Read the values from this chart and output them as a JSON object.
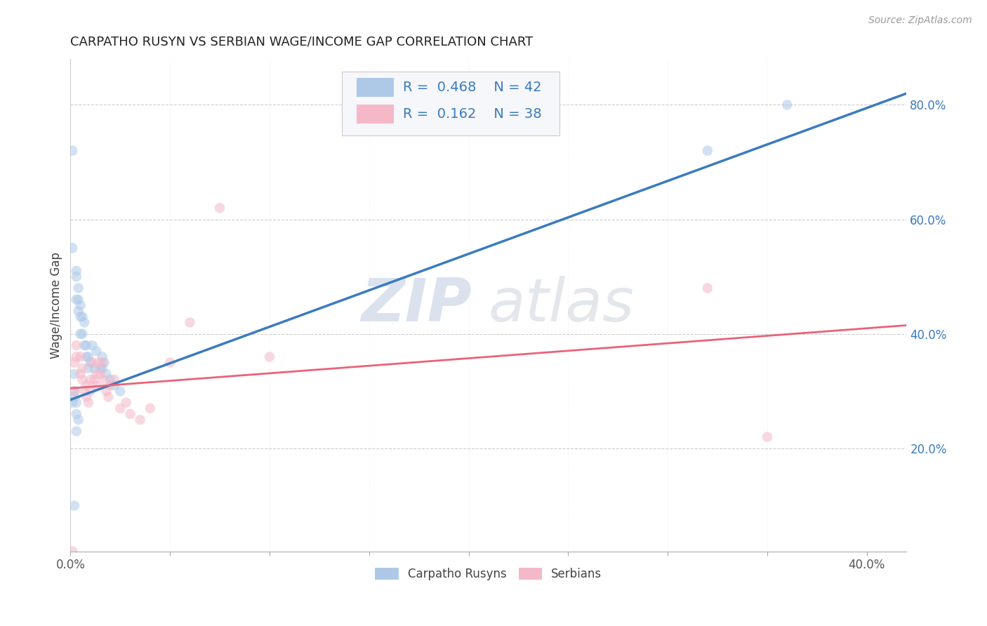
{
  "title": "CARPATHO RUSYN VS SERBIAN WAGE/INCOME GAP CORRELATION CHART",
  "source": "Source: ZipAtlas.com",
  "ylabel": "Wage/Income Gap",
  "x_tick_labels_show": [
    "0.0%",
    "",
    "",
    "",
    "",
    "",
    "",
    "",
    "40.0%"
  ],
  "y_label_right_ticks": [
    "20.0%",
    "40.0%",
    "60.0%",
    "80.0%"
  ],
  "xlim": [
    0.0,
    0.42
  ],
  "ylim": [
    0.02,
    0.88
  ],
  "blue_R": 0.468,
  "blue_N": 42,
  "pink_R": 0.162,
  "pink_N": 38,
  "blue_color": "#aec9e8",
  "pink_color": "#f4b8c8",
  "blue_line_color": "#3a7bbf",
  "pink_line_color": "#e8637a",
  "watermark_color": "#ccd6e8",
  "background_color": "#ffffff",
  "grid_color": "#cccccc",
  "blue_scatter_x": [
    0.001,
    0.002,
    0.001,
    0.002,
    0.002,
    0.003,
    0.003,
    0.003,
    0.004,
    0.004,
    0.004,
    0.005,
    0.005,
    0.005,
    0.006,
    0.006,
    0.007,
    0.007,
    0.008,
    0.008,
    0.009,
    0.009,
    0.01,
    0.011,
    0.012,
    0.013,
    0.015,
    0.016,
    0.016,
    0.017,
    0.018,
    0.02,
    0.022,
    0.025,
    0.001,
    0.002,
    0.003,
    0.003,
    0.004,
    0.003,
    0.32,
    0.36
  ],
  "blue_scatter_y": [
    0.72,
    0.1,
    0.55,
    0.3,
    0.33,
    0.46,
    0.5,
    0.51,
    0.44,
    0.46,
    0.48,
    0.4,
    0.43,
    0.45,
    0.4,
    0.43,
    0.38,
    0.42,
    0.36,
    0.38,
    0.34,
    0.36,
    0.35,
    0.38,
    0.34,
    0.37,
    0.34,
    0.36,
    0.34,
    0.35,
    0.33,
    0.32,
    0.31,
    0.3,
    0.28,
    0.29,
    0.28,
    0.26,
    0.25,
    0.23,
    0.72,
    0.8
  ],
  "pink_scatter_x": [
    0.001,
    0.002,
    0.003,
    0.003,
    0.005,
    0.005,
    0.006,
    0.006,
    0.007,
    0.008,
    0.008,
    0.009,
    0.01,
    0.01,
    0.011,
    0.012,
    0.013,
    0.013,
    0.014,
    0.015,
    0.016,
    0.017,
    0.018,
    0.019,
    0.02,
    0.022,
    0.025,
    0.028,
    0.03,
    0.035,
    0.04,
    0.05,
    0.06,
    0.075,
    0.32,
    0.35,
    0.002,
    0.1
  ],
  "pink_scatter_y": [
    0.02,
    0.3,
    0.36,
    0.38,
    0.33,
    0.36,
    0.32,
    0.34,
    0.3,
    0.29,
    0.31,
    0.28,
    0.3,
    0.32,
    0.35,
    0.32,
    0.31,
    0.33,
    0.35,
    0.33,
    0.35,
    0.32,
    0.3,
    0.29,
    0.31,
    0.32,
    0.27,
    0.28,
    0.26,
    0.25,
    0.27,
    0.35,
    0.42,
    0.62,
    0.48,
    0.22,
    0.35,
    0.36
  ],
  "blue_line_x": [
    0.0,
    0.42
  ],
  "blue_line_y": [
    0.285,
    0.82
  ],
  "pink_line_x": [
    0.0,
    0.42
  ],
  "pink_line_y": [
    0.305,
    0.415
  ],
  "marker_size": 110,
  "marker_alpha": 0.55,
  "legend_labels": [
    "Carpatho Rusyns",
    "Serbians"
  ]
}
